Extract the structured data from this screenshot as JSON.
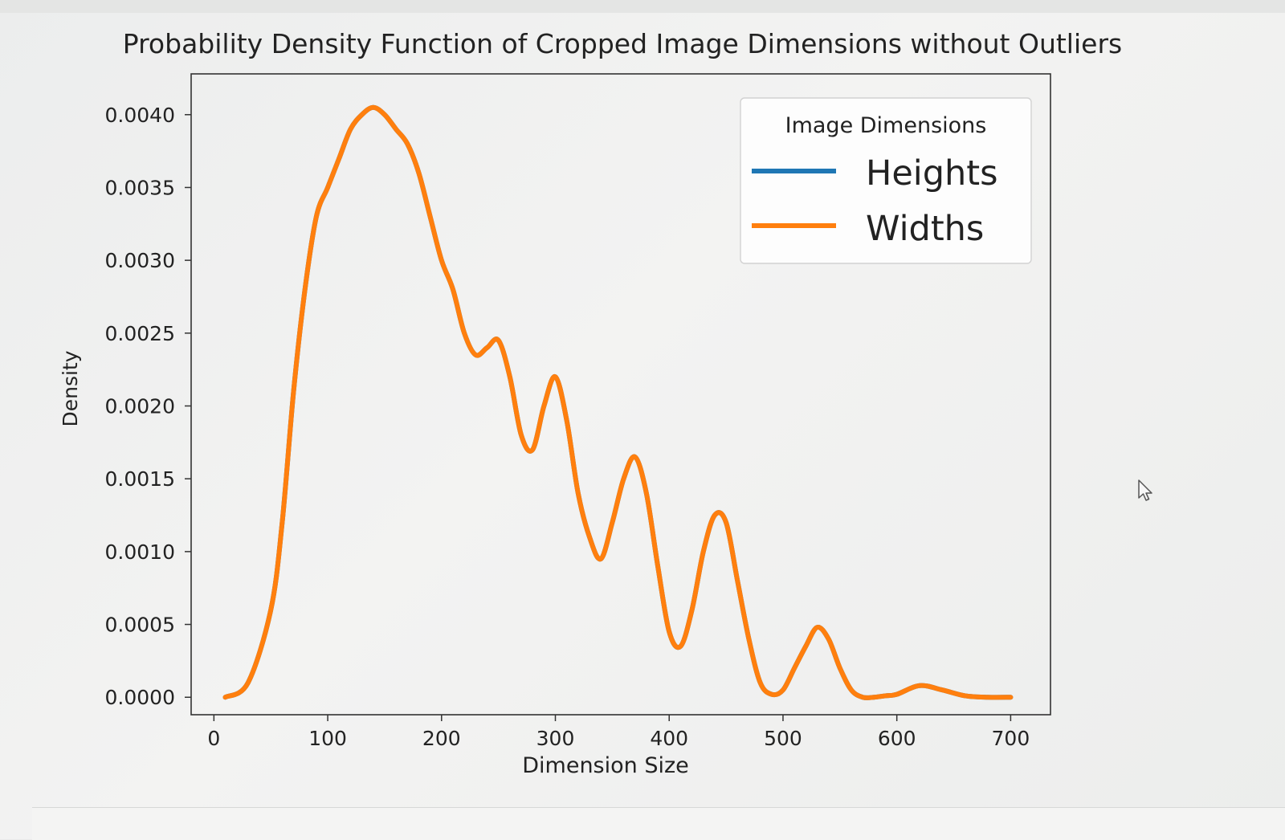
{
  "chart_data": {
    "type": "line",
    "title": "Probability Density Function of Cropped Image Dimensions without Outliers",
    "xlabel": "Dimension Size",
    "ylabel": "Density",
    "xlim": [
      -20,
      735
    ],
    "ylim": [
      -0.00012,
      0.00428
    ],
    "xticks": [
      0,
      100,
      200,
      300,
      400,
      500,
      600,
      700
    ],
    "yticks": [
      0.0,
      0.0005,
      0.001,
      0.0015,
      0.002,
      0.0025,
      0.003,
      0.0035,
      0.004
    ],
    "ytick_labels": [
      "0.0000",
      "0.0005",
      "0.0010",
      "0.0015",
      "0.0020",
      "0.0025",
      "0.0030",
      "0.0035",
      "0.0040"
    ],
    "legend": {
      "title": "Image Dimensions",
      "position": "top-right",
      "entries": [
        {
          "label": "Heights",
          "color": "#1f77b4"
        },
        {
          "label": "Widths",
          "color": "#ff7f0e"
        }
      ]
    },
    "series": [
      {
        "name": "Heights",
        "color": "#1f77b4",
        "x": [
          10,
          30,
          50,
          60,
          70,
          80,
          90,
          100,
          110,
          120,
          130,
          140,
          150,
          160,
          170,
          180,
          190,
          200,
          210,
          220,
          230,
          240,
          250,
          260,
          270,
          280,
          290,
          300,
          310,
          320,
          330,
          340,
          350,
          360,
          370,
          380,
          390,
          400,
          410,
          420,
          430,
          440,
          450,
          460,
          470,
          480,
          490,
          500,
          510,
          520,
          530,
          540,
          550,
          560,
          570,
          580,
          590,
          600,
          620,
          640,
          660,
          680,
          700
        ],
        "values": [
          0.0,
          0.0001,
          0.0006,
          0.0012,
          0.0021,
          0.0028,
          0.0033,
          0.0035,
          0.0037,
          0.0039,
          0.004,
          0.00405,
          0.004,
          0.0039,
          0.0038,
          0.0036,
          0.0033,
          0.003,
          0.0028,
          0.0025,
          0.00235,
          0.0024,
          0.00245,
          0.0022,
          0.0018,
          0.0017,
          0.002,
          0.0022,
          0.0019,
          0.0014,
          0.0011,
          0.00095,
          0.0012,
          0.0015,
          0.00165,
          0.0014,
          0.0009,
          0.00045,
          0.00035,
          0.0006,
          0.001,
          0.00125,
          0.0012,
          0.0008,
          0.0004,
          0.0001,
          2e-05,
          5e-05,
          0.0002,
          0.00035,
          0.00048,
          0.0004,
          0.0002,
          5e-05,
          0.0,
          0.0,
          1e-05,
          2e-05,
          8e-05,
          5e-05,
          1e-05,
          0.0,
          0.0
        ]
      },
      {
        "name": "Widths",
        "color": "#ff7f0e",
        "x": [
          10,
          30,
          50,
          60,
          70,
          80,
          90,
          100,
          110,
          120,
          130,
          140,
          150,
          160,
          170,
          180,
          190,
          200,
          210,
          220,
          230,
          240,
          250,
          260,
          270,
          280,
          290,
          300,
          310,
          320,
          330,
          340,
          350,
          360,
          370,
          380,
          390,
          400,
          410,
          420,
          430,
          440,
          450,
          460,
          470,
          480,
          490,
          500,
          510,
          520,
          530,
          540,
          550,
          560,
          570,
          580,
          590,
          600,
          620,
          640,
          660,
          680,
          700
        ],
        "values": [
          0.0,
          0.0001,
          0.0006,
          0.0012,
          0.0021,
          0.0028,
          0.0033,
          0.0035,
          0.0037,
          0.0039,
          0.004,
          0.00405,
          0.004,
          0.0039,
          0.0038,
          0.0036,
          0.0033,
          0.003,
          0.0028,
          0.0025,
          0.00235,
          0.0024,
          0.00245,
          0.0022,
          0.0018,
          0.0017,
          0.002,
          0.0022,
          0.0019,
          0.0014,
          0.0011,
          0.00095,
          0.0012,
          0.0015,
          0.00165,
          0.0014,
          0.0009,
          0.00045,
          0.00035,
          0.0006,
          0.001,
          0.00125,
          0.0012,
          0.0008,
          0.0004,
          0.0001,
          2e-05,
          5e-05,
          0.0002,
          0.00035,
          0.00048,
          0.0004,
          0.0002,
          5e-05,
          0.0,
          0.0,
          1e-05,
          2e-05,
          8e-05,
          5e-05,
          1e-05,
          0.0,
          0.0
        ]
      }
    ]
  }
}
